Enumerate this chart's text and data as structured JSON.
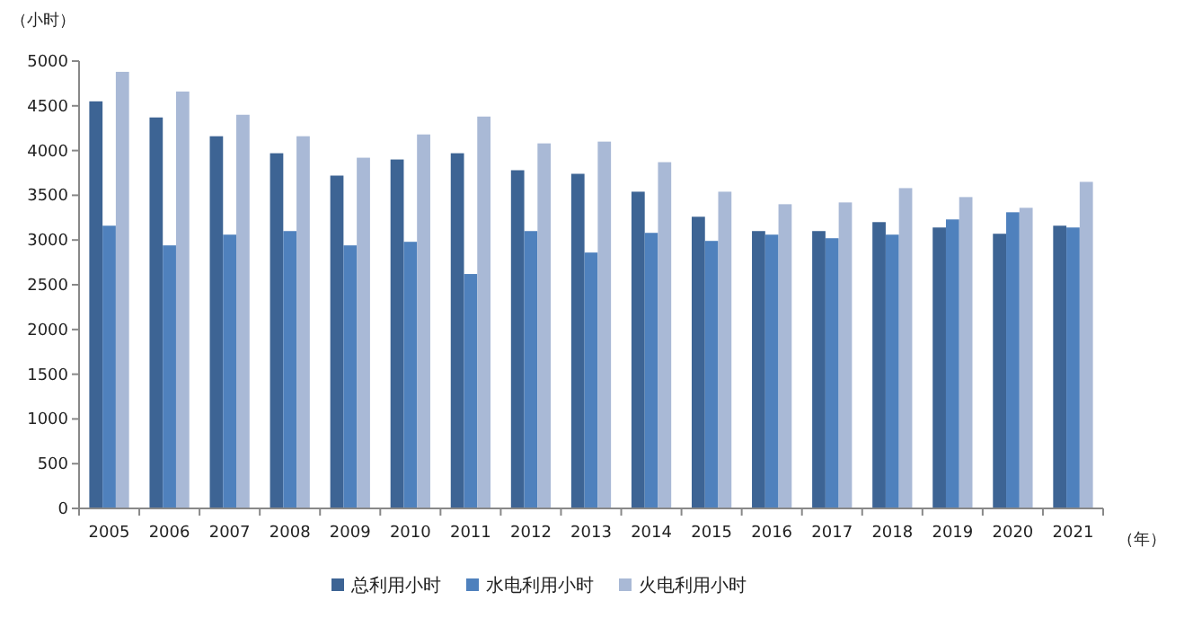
{
  "chart_data": {
    "type": "bar",
    "ylabel": "（小时）",
    "xlabel": "（年）",
    "categories": [
      "2005",
      "2006",
      "2007",
      "2008",
      "2009",
      "2010",
      "2011",
      "2012",
      "2013",
      "2014",
      "2015",
      "2016",
      "2017",
      "2018",
      "2019",
      "2020",
      "2021"
    ],
    "series": [
      {
        "name": "总利用小时",
        "color": "#3d6494",
        "values": [
          4550,
          4370,
          4160,
          3970,
          3720,
          3900,
          3970,
          3780,
          3740,
          3540,
          3260,
          3100,
          3100,
          3200,
          3140,
          3070,
          3160
        ]
      },
      {
        "name": "水电利用小时",
        "color": "#4f81bd",
        "values": [
          3160,
          2940,
          3060,
          3100,
          2940,
          2980,
          2620,
          3100,
          2860,
          3080,
          2990,
          3060,
          3020,
          3060,
          3230,
          3310,
          3140
        ]
      },
      {
        "name": "火电利用小时",
        "color": "#a9b9d6",
        "values": [
          4880,
          4660,
          4400,
          4160,
          3920,
          4180,
          4380,
          4080,
          4100,
          3870,
          3540,
          3400,
          3420,
          3580,
          3480,
          3360,
          3650
        ]
      }
    ],
    "ylim": [
      0,
      5000
    ],
    "yticks": [
      0,
      500,
      1000,
      1500,
      2000,
      2500,
      3000,
      3500,
      4000,
      4500,
      5000
    ],
    "legend": "bottom"
  }
}
